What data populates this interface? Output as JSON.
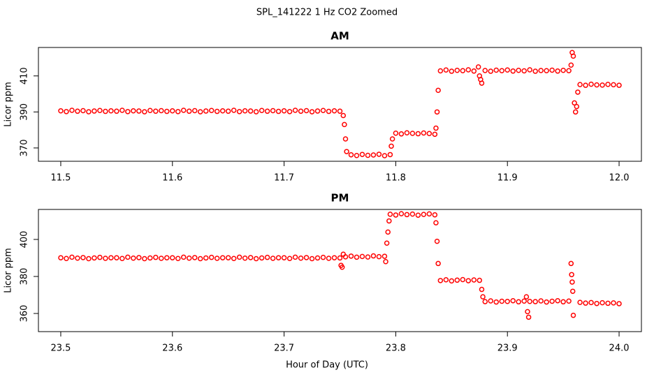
{
  "title": "SPL_141222  1 Hz CO2 Zoomed",
  "x_label": "Hour of Day (UTC)",
  "chart_data": [
    {
      "type": "scatter",
      "title": "AM",
      "y_label": "Licor ppm",
      "color": "#ff0000",
      "xlim": [
        11.48,
        12.02
      ],
      "ylim": [
        362.6,
        425.8
      ],
      "xticks": [
        11.5,
        11.6,
        11.7,
        11.8,
        11.9,
        {
          "value": 12,
          "label": "12.0"
        }
      ],
      "yticks": [
        370,
        390,
        410
      ],
      "x": [
        11.5,
        11.505,
        11.51,
        11.515,
        11.52,
        11.525,
        11.53,
        11.535,
        11.54,
        11.545,
        11.55,
        11.555,
        11.56,
        11.565,
        11.57,
        11.575,
        11.58,
        11.585,
        11.59,
        11.595,
        11.6,
        11.605,
        11.61,
        11.615,
        11.62,
        11.625,
        11.63,
        11.635,
        11.64,
        11.645,
        11.65,
        11.655,
        11.66,
        11.665,
        11.67,
        11.675,
        11.68,
        11.685,
        11.69,
        11.695,
        11.7,
        11.705,
        11.71,
        11.715,
        11.72,
        11.725,
        11.73,
        11.735,
        11.74,
        11.745,
        11.75,
        11.753,
        11.754,
        11.755,
        11.756,
        11.76,
        11.765,
        11.77,
        11.775,
        11.78,
        11.785,
        11.79,
        11.795,
        11.796,
        11.797,
        11.8,
        11.805,
        11.81,
        11.815,
        11.82,
        11.825,
        11.83,
        11.835,
        11.836,
        11.837,
        11.838,
        11.84,
        11.845,
        11.85,
        11.855,
        11.86,
        11.865,
        11.87,
        11.874,
        11.875,
        11.876,
        11.877,
        11.88,
        11.885,
        11.89,
        11.895,
        11.9,
        11.905,
        11.91,
        11.915,
        11.92,
        11.925,
        11.93,
        11.935,
        11.94,
        11.945,
        11.95,
        11.955,
        11.957,
        11.958,
        11.959,
        11.96,
        11.961,
        11.962,
        11.963,
        11.965,
        11.97,
        11.975,
        11.98,
        11.985,
        11.99,
        11.995,
        12
      ],
      "values": [
        390.6,
        390.2,
        390.9,
        390.4,
        390.7,
        390.1,
        390.5,
        390.8,
        390.3,
        390.6,
        390.4,
        390.9,
        390.2,
        390.6,
        390.5,
        390.1,
        390.8,
        390.4,
        390.7,
        390.3,
        390.6,
        390.2,
        390.9,
        390.4,
        390.7,
        390.1,
        390.5,
        390.8,
        390.3,
        390.6,
        390.4,
        390.9,
        390.2,
        390.6,
        390.5,
        390.1,
        390.8,
        390.4,
        390.7,
        390.3,
        390.6,
        390.2,
        390.9,
        390.4,
        390.7,
        390.1,
        390.5,
        390.8,
        390.3,
        390.6,
        390.4,
        388,
        383,
        375,
        368,
        366.2,
        365.8,
        366.4,
        365.9,
        366.1,
        366.5,
        365.7,
        366.3,
        371,
        375,
        378.2,
        377.8,
        378.4,
        378.1,
        377.9,
        378.3,
        378.0,
        377.6,
        381,
        390,
        402,
        412.8,
        413.3,
        412.6,
        413.1,
        412.9,
        413.4,
        412.7,
        415,
        410,
        408,
        406,
        413.0,
        412.6,
        413.2,
        412.9,
        413.3,
        412.7,
        413.1,
        412.8,
        413.4,
        412.6,
        413.0,
        412.9,
        413.2,
        412.7,
        413.1,
        412.9,
        416,
        423,
        421,
        395,
        390,
        393,
        401,
        405.2,
        404.8,
        405.4,
        405.0,
        404.9,
        405.3,
        405.1,
        404.8
      ]
    },
    {
      "type": "scatter",
      "title": "PM",
      "y_label": "Licor ppm",
      "color": "#ff0000",
      "xlim": [
        23.48,
        24.02
      ],
      "ylim": [
        350.2,
        416.2
      ],
      "xticks": [
        23.5,
        23.6,
        23.7,
        23.8,
        23.9,
        {
          "value": 24,
          "label": "24.0"
        }
      ],
      "yticks": [
        360,
        380,
        400
      ],
      "x": [
        23.5,
        23.505,
        23.51,
        23.515,
        23.52,
        23.525,
        23.53,
        23.535,
        23.54,
        23.545,
        23.55,
        23.555,
        23.56,
        23.565,
        23.57,
        23.575,
        23.58,
        23.585,
        23.59,
        23.595,
        23.6,
        23.605,
        23.61,
        23.615,
        23.62,
        23.625,
        23.63,
        23.635,
        23.64,
        23.645,
        23.65,
        23.655,
        23.66,
        23.665,
        23.67,
        23.675,
        23.68,
        23.685,
        23.69,
        23.695,
        23.7,
        23.705,
        23.71,
        23.715,
        23.72,
        23.725,
        23.73,
        23.735,
        23.74,
        23.745,
        23.75,
        23.751,
        23.752,
        23.753,
        23.755,
        23.76,
        23.765,
        23.77,
        23.775,
        23.78,
        23.785,
        23.79,
        23.791,
        23.792,
        23.793,
        23.794,
        23.795,
        23.8,
        23.805,
        23.81,
        23.815,
        23.82,
        23.825,
        23.83,
        23.835,
        23.836,
        23.837,
        23.838,
        23.84,
        23.845,
        23.85,
        23.855,
        23.86,
        23.865,
        23.87,
        23.875,
        23.877,
        23.878,
        23.88,
        23.885,
        23.89,
        23.895,
        23.9,
        23.905,
        23.91,
        23.915,
        23.917,
        23.918,
        23.919,
        23.92,
        23.925,
        23.93,
        23.935,
        23.94,
        23.945,
        23.95,
        23.955,
        23.957,
        23.9575,
        23.958,
        23.9585,
        23.959,
        23.965,
        23.97,
        23.975,
        23.98,
        23.985,
        23.99,
        23.995,
        24
      ],
      "values": [
        390.1,
        389.7,
        390.4,
        389.9,
        390.2,
        389.6,
        390.0,
        390.3,
        389.8,
        390.1,
        390.1,
        389.7,
        390.4,
        389.9,
        390.2,
        389.6,
        390.0,
        390.3,
        389.8,
        390.1,
        390.1,
        389.7,
        390.4,
        389.9,
        390.2,
        389.6,
        390.0,
        390.3,
        389.8,
        390.1,
        390.1,
        389.7,
        390.4,
        389.9,
        390.2,
        389.6,
        390.0,
        390.3,
        389.8,
        390.1,
        390.1,
        389.7,
        390.4,
        389.9,
        390.2,
        389.6,
        390.0,
        390.3,
        389.8,
        390.1,
        390.0,
        386,
        385,
        392,
        390.6,
        391.0,
        390.4,
        390.8,
        390.5,
        391.1,
        390.7,
        390.9,
        388,
        398,
        404,
        410,
        413.6,
        413.2,
        413.9,
        413.4,
        413.7,
        413.1,
        413.5,
        413.8,
        413.3,
        409,
        399,
        387,
        377.8,
        378.2,
        377.6,
        378.0,
        378.3,
        377.7,
        378.1,
        377.9,
        373,
        369,
        366.4,
        366.8,
        366.2,
        366.6,
        366.5,
        366.9,
        366.3,
        366.7,
        369,
        361,
        358,
        366.5,
        366.4,
        366.8,
        366.2,
        366.6,
        366.9,
        366.3,
        366.7,
        387,
        381,
        377,
        372,
        359,
        366.0,
        365.6,
        365.9,
        365.4,
        365.8,
        365.5,
        365.7,
        365.3
      ]
    }
  ]
}
